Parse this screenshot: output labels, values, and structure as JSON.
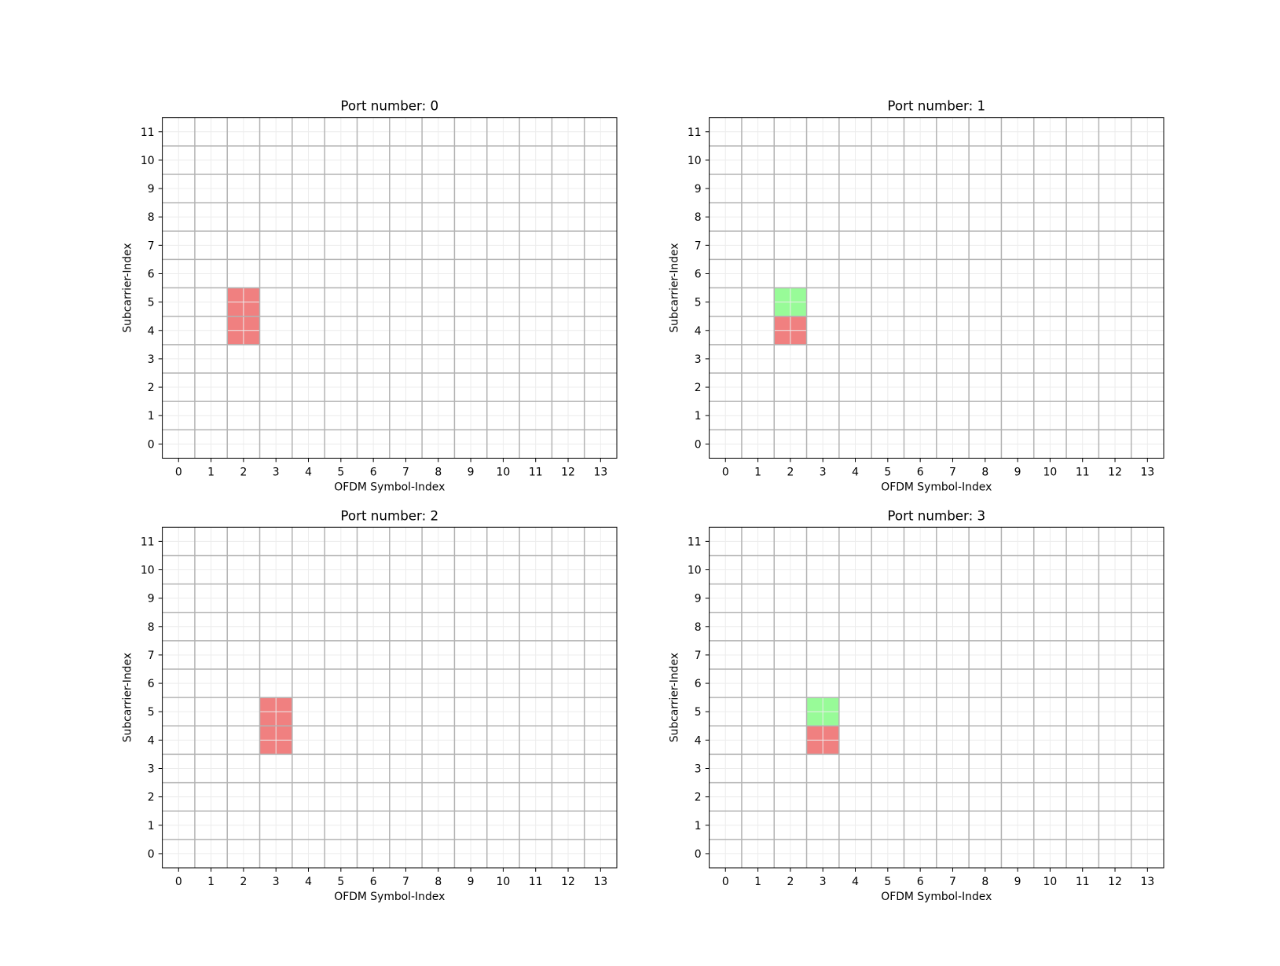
{
  "figure": {
    "background": "#ffffff",
    "cell_border_color": "#b3b3b3",
    "minor_grid_color": "#ececec",
    "axes_color": "#000000"
  },
  "chart_data": [
    {
      "type": "heatmap",
      "title": "Port number: 0",
      "xlabel": "OFDM Symbol-Index",
      "ylabel": "Subcarrier-Index",
      "x_ticks": [
        0,
        1,
        2,
        3,
        4,
        5,
        6,
        7,
        8,
        9,
        10,
        11,
        12,
        13
      ],
      "y_ticks": [
        0,
        1,
        2,
        3,
        4,
        5,
        6,
        7,
        8,
        9,
        10,
        11
      ],
      "xlim": [
        -0.5,
        13.5
      ],
      "ylim": [
        -0.5,
        11.5
      ],
      "grid": true,
      "cells": [
        {
          "symbol": 2,
          "subcarrier": 4,
          "color": "#f08080"
        },
        {
          "symbol": 2,
          "subcarrier": 5,
          "color": "#f08080"
        }
      ]
    },
    {
      "type": "heatmap",
      "title": "Port number: 1",
      "xlabel": "OFDM Symbol-Index",
      "ylabel": "Subcarrier-Index",
      "x_ticks": [
        0,
        1,
        2,
        3,
        4,
        5,
        6,
        7,
        8,
        9,
        10,
        11,
        12,
        13
      ],
      "y_ticks": [
        0,
        1,
        2,
        3,
        4,
        5,
        6,
        7,
        8,
        9,
        10,
        11
      ],
      "xlim": [
        -0.5,
        13.5
      ],
      "ylim": [
        -0.5,
        11.5
      ],
      "grid": true,
      "cells": [
        {
          "symbol": 2,
          "subcarrier": 4,
          "color": "#f08080"
        },
        {
          "symbol": 2,
          "subcarrier": 5,
          "color": "#98fb98"
        }
      ]
    },
    {
      "type": "heatmap",
      "title": "Port number: 2",
      "xlabel": "OFDM Symbol-Index",
      "ylabel": "Subcarrier-Index",
      "x_ticks": [
        0,
        1,
        2,
        3,
        4,
        5,
        6,
        7,
        8,
        9,
        10,
        11,
        12,
        13
      ],
      "y_ticks": [
        0,
        1,
        2,
        3,
        4,
        5,
        6,
        7,
        8,
        9,
        10,
        11
      ],
      "xlim": [
        -0.5,
        13.5
      ],
      "ylim": [
        -0.5,
        11.5
      ],
      "grid": true,
      "cells": [
        {
          "symbol": 3,
          "subcarrier": 4,
          "color": "#f08080"
        },
        {
          "symbol": 3,
          "subcarrier": 5,
          "color": "#f08080"
        }
      ]
    },
    {
      "type": "heatmap",
      "title": "Port number: 3",
      "xlabel": "OFDM Symbol-Index",
      "ylabel": "Subcarrier-Index",
      "x_ticks": [
        0,
        1,
        2,
        3,
        4,
        5,
        6,
        7,
        8,
        9,
        10,
        11,
        12,
        13
      ],
      "y_ticks": [
        0,
        1,
        2,
        3,
        4,
        5,
        6,
        7,
        8,
        9,
        10,
        11
      ],
      "xlim": [
        -0.5,
        13.5
      ],
      "ylim": [
        -0.5,
        11.5
      ],
      "grid": true,
      "cells": [
        {
          "symbol": 3,
          "subcarrier": 4,
          "color": "#f08080"
        },
        {
          "symbol": 3,
          "subcarrier": 5,
          "color": "#98fb98"
        }
      ]
    }
  ]
}
